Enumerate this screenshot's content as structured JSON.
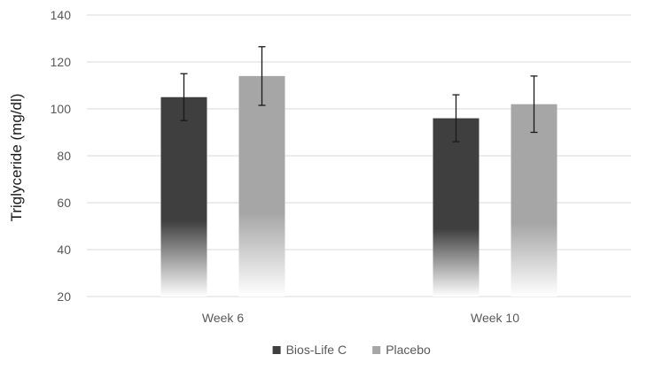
{
  "chart_data": {
    "type": "bar",
    "title": "",
    "xlabel": "",
    "ylabel": "Triglyceride (mg/dl)",
    "categories": [
      "Week 6",
      "Week 10"
    ],
    "ylim": [
      20,
      140
    ],
    "yticks": [
      20,
      40,
      60,
      80,
      100,
      120,
      140
    ],
    "grid": true,
    "legend_position": "bottom",
    "series": [
      {
        "name": "Bios-Life C",
        "values": [
          105,
          96
        ],
        "error": [
          10,
          10
        ],
        "color": "#3f3f3f"
      },
      {
        "name": "Placebo",
        "values": [
          114,
          102
        ],
        "error": [
          12.5,
          12
        ],
        "color": "#a6a6a6"
      }
    ]
  }
}
